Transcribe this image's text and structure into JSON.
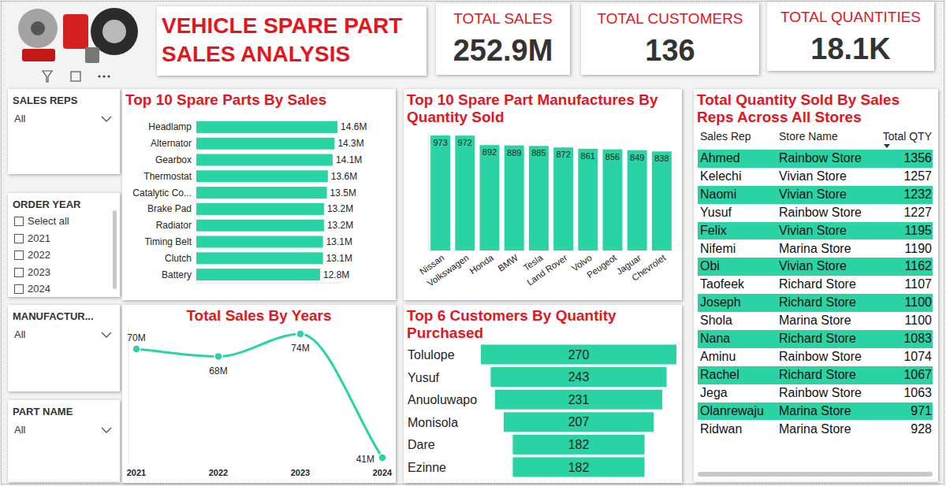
{
  "header": {
    "title": "VEHICLE SPARE PART SALES ANALYSIS"
  },
  "kpis": [
    {
      "label": "TOTAL SALES",
      "value": "252.9M"
    },
    {
      "label": "TOTAL CUSTOMERS",
      "value": "136"
    },
    {
      "label": "TOTAL QUANTITIES",
      "value": "18.1K"
    }
  ],
  "filters": [
    {
      "label": "SALES REPS",
      "selected": "All"
    },
    {
      "label": "ORDER YEAR",
      "options": [
        "Select all",
        "2021",
        "2022",
        "2023",
        "2024"
      ]
    },
    {
      "label": "MANUFACTUR...",
      "selected": "All"
    },
    {
      "label": "PART NAME",
      "selected": "All"
    }
  ],
  "chart_data": [
    {
      "type": "bar",
      "title": "Top 10 Spare Parts By Sales",
      "orientation": "horizontal",
      "categories": [
        "Headlamp",
        "Alternator",
        "Gearbox",
        "Thermostat",
        "Catalytic Co...",
        "Brake Pad",
        "Radiator",
        "Timing Belt",
        "Clutch",
        "Battery"
      ],
      "values": [
        14.6,
        14.3,
        14.1,
        13.6,
        13.5,
        13.2,
        13.2,
        13.1,
        13.1,
        12.8
      ],
      "value_labels": [
        "14.6M",
        "14.3M",
        "14.1M",
        "13.6M",
        "13.5M",
        "13.2M",
        "13.2M",
        "13.1M",
        "13.1M",
        "12.8M"
      ],
      "color": "#2ad3a3",
      "xlim": [
        0,
        15
      ],
      "data_labels": true,
      "tick_labels": "y"
    },
    {
      "type": "bar",
      "title": "Top 10 Spare Part Manufactures By Quantity Sold",
      "categories": [
        "Nissan",
        "Volkswagen",
        "Honda",
        "BMW",
        "Tesla",
        "Land Rover",
        "Volvo",
        "Peugeot",
        "Jaguar",
        "Chevrolet"
      ],
      "values": [
        973,
        972,
        892,
        889,
        885,
        872,
        861,
        856,
        849,
        838
      ],
      "color": "#2ad3a3",
      "ylim": [
        0,
        1000
      ],
      "data_labels": true,
      "tick_labels": "x"
    },
    {
      "type": "line",
      "title": "Total Sales By Years",
      "categories": [
        "2021",
        "2022",
        "2023",
        "2024"
      ],
      "values": [
        70,
        68,
        74,
        41
      ],
      "value_labels": [
        "70M",
        "68M",
        "74M",
        "41M"
      ],
      "color": "#2ad3a3",
      "ylim": [
        39,
        76
      ],
      "marker": "circle",
      "line_style": "solid",
      "data_labels": true,
      "tick_labels": "x"
    },
    {
      "type": "funnel",
      "title": "Top 6 Customers By Quantity Purchased",
      "categories": [
        "Tolulope",
        "Yusuf",
        "Anuoluwapo",
        "Monisola",
        "Dare",
        "Ezinne"
      ],
      "values": [
        270,
        243,
        231,
        207,
        182,
        182
      ],
      "color": "#2ad3a3",
      "data_labels": true
    }
  ],
  "table": {
    "title": "Total Quantity Sold By Sales Reps Across All Stores",
    "columns": [
      "Sales Rep",
      "Store Name",
      "Total QTY"
    ],
    "rows": [
      [
        "Ahmed",
        "Rainbow Store",
        1356
      ],
      [
        "Kelechi",
        "Vivian Store",
        1257
      ],
      [
        "Naomi",
        "Vivian Store",
        1232
      ],
      [
        "Yusuf",
        "Rainbow Store",
        1227
      ],
      [
        "Felix",
        "Vivian Store",
        1195
      ],
      [
        "Nifemi",
        "Marina Store",
        1190
      ],
      [
        "Obi",
        "Vivian Store",
        1162
      ],
      [
        "Taofeek",
        "Richard Store",
        1107
      ],
      [
        "Joseph",
        "Richard Store",
        1100
      ],
      [
        "Shola",
        "Marina Store",
        1100
      ],
      [
        "Nana",
        "Richard Store",
        1083
      ],
      [
        "Aminu",
        "Rainbow Store",
        1074
      ],
      [
        "Rachel",
        "Richard Store",
        1067
      ],
      [
        "Jega",
        "Rainbow Store",
        1063
      ],
      [
        "Olanrewaju",
        "Marina Store",
        971
      ],
      [
        "Ridwan",
        "Marina Store",
        928
      ]
    ]
  }
}
